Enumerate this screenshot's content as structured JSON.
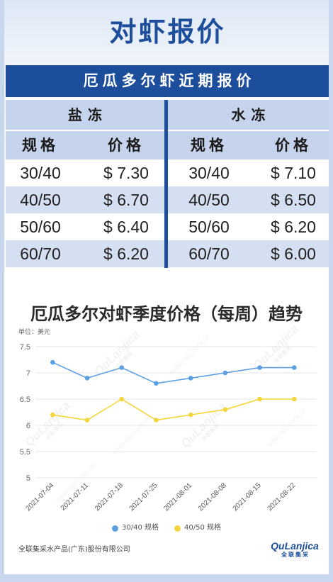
{
  "page": {
    "title": "对虾报价"
  },
  "price_table": {
    "title": "厄瓜多尔虾近期报价",
    "groups": [
      {
        "name": "盐冻",
        "headers": [
          "规格",
          "价格"
        ],
        "rows": [
          [
            "30/40",
            "$ 7.30"
          ],
          [
            "40/50",
            "$ 6.70"
          ],
          [
            "50/60",
            "$ 6.40"
          ],
          [
            "60/70",
            "$ 6.20"
          ]
        ]
      },
      {
        "name": "水冻",
        "headers": [
          "规格",
          "价格"
        ],
        "rows": [
          [
            "30/40",
            "$ 7.10"
          ],
          [
            "40/50",
            "$ 6.50"
          ],
          [
            "50/60",
            "$ 6.20"
          ],
          [
            "60/70",
            "$ 6.00"
          ]
        ]
      }
    ]
  },
  "chart_data": {
    "type": "line",
    "title": "厄瓜多尔对虾季度价格（每周）趋势",
    "unit_label": "单位：美元",
    "categories": [
      "2021-07-04",
      "2021-07-11",
      "2021-07-18",
      "2021-07-25",
      "2021-08-01",
      "2021-08-08",
      "2021-08-15",
      "2021-08-22"
    ],
    "series": [
      {
        "name": "30/40 规格",
        "color": "#5ca0e4",
        "values": [
          7.2,
          6.9,
          7.1,
          6.8,
          6.9,
          7.0,
          7.1,
          7.1
        ]
      },
      {
        "name": "40/50 规格",
        "color": "#f2d63b",
        "values": [
          6.2,
          6.1,
          6.5,
          6.1,
          6.2,
          6.3,
          6.5,
          6.5
        ]
      }
    ],
    "ylim": [
      5,
      7.5
    ],
    "yticks": [
      7.5,
      7,
      6.5,
      6,
      5.5,
      5
    ],
    "grid": true,
    "legend": "bottom"
  },
  "footer": {
    "company": "全联集采水产品(广东)股份有限公司"
  },
  "logo": {
    "text": "QuLanjica",
    "subtext": "全联集采"
  },
  "watermark": {
    "logo_text": "QuLanjica",
    "logo_subtext": "全联集采",
    "url": "www.qljc.com.cn"
  },
  "colors": {
    "brand_blue": "#1d4e9c",
    "row_tint": "#c5d3ec",
    "row_alt": "#d4dff2"
  }
}
